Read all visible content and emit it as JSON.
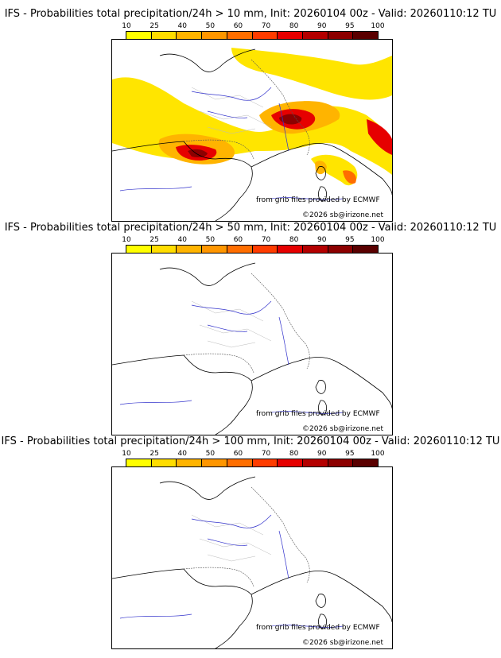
{
  "scale": {
    "ticks": [
      "10",
      "25",
      "40",
      "50",
      "60",
      "70",
      "80",
      "90",
      "95",
      "100"
    ],
    "colors": [
      "#ffff00",
      "#ffdd00",
      "#ffb400",
      "#ff9600",
      "#ff6e00",
      "#ff3c00",
      "#e60000",
      "#b40000",
      "#8c0000",
      "#5a0000"
    ]
  },
  "panels": [
    {
      "title": "IFS - Probabilities total precipitation/24h > 10 mm, Init: 20260104 00z - Valid: 20260110:12 TU",
      "source": "from grib files provided by ECMWF",
      "copyright": "©2026 sb@irizone.net"
    },
    {
      "title": "IFS - Probabilities total precipitation/24h > 50 mm, Init: 20260104 00z - Valid: 20260110:12 TU",
      "source": "from grib files provided by ECMWF",
      "copyright": "©2026 sb@irizone.net"
    },
    {
      "title": "IFS - Probabilities total precipitation/24h > 100 mm, Init: 20260104 00z - Valid: 20260110:12 TU",
      "source": "from grib files provided by ECMWF",
      "copyright": "©2026 sb@irizone.net"
    }
  ]
}
